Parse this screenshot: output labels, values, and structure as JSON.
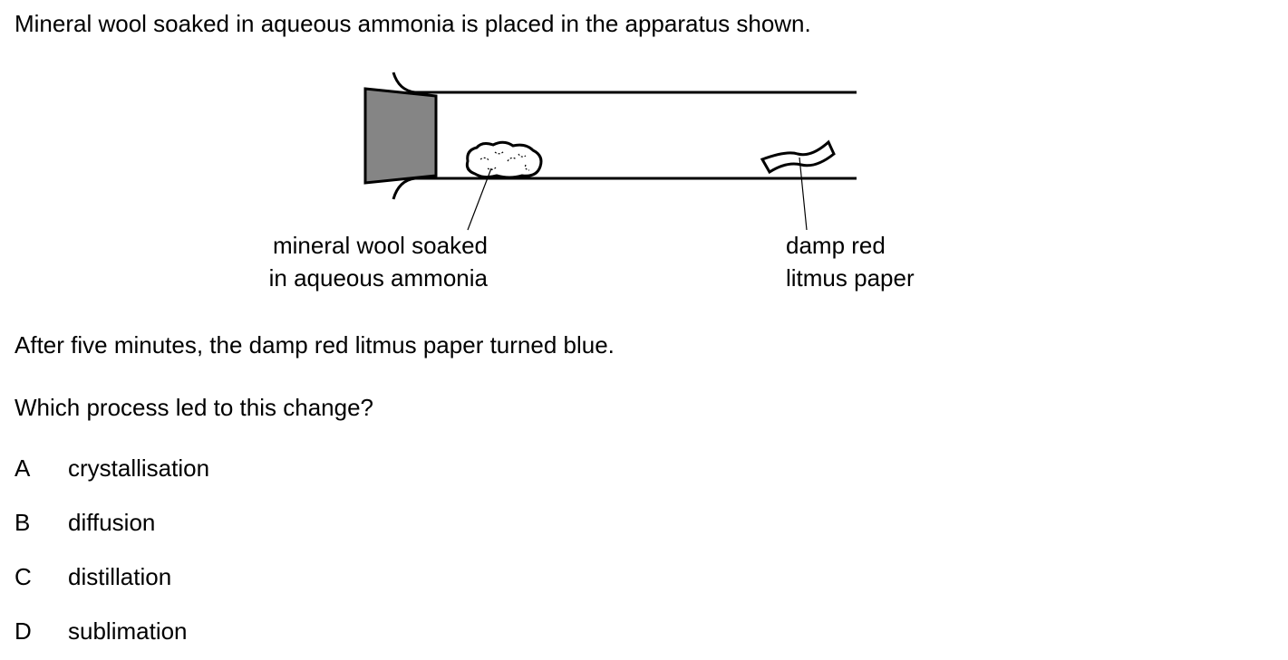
{
  "question": {
    "intro": "Mineral wool soaked in aqueous ammonia is placed in the apparatus shown.",
    "observation": "After five minutes, the damp red litmus paper turned blue.",
    "prompt": "Which process led to this change?"
  },
  "diagram": {
    "label_wool_line1": "mineral wool soaked",
    "label_wool_line2": "in aqueous ammonia",
    "label_litmus_line1": "damp red",
    "label_litmus_line2": "litmus paper",
    "stopper_color": "#858585"
  },
  "options": [
    {
      "letter": "A",
      "text": "crystallisation"
    },
    {
      "letter": "B",
      "text": "diffusion"
    },
    {
      "letter": "C",
      "text": "distillation"
    },
    {
      "letter": "D",
      "text": "sublimation"
    }
  ]
}
